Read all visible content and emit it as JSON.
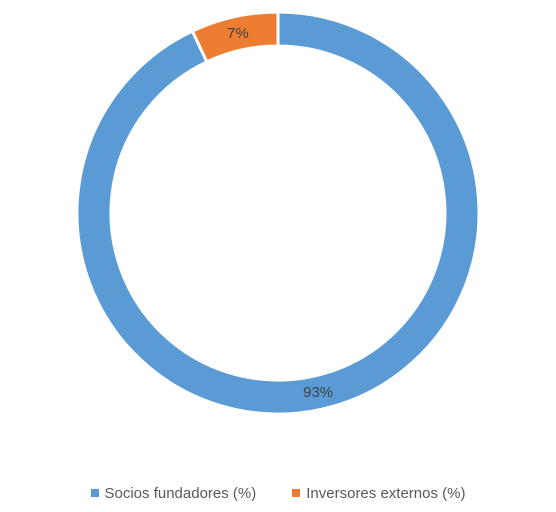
{
  "chart_data": {
    "type": "pie",
    "variant": "donut",
    "title": "",
    "categories": [
      "Socios fundadores (%)",
      "Inversores externos (%)"
    ],
    "values": [
      93,
      7
    ],
    "data_labels": [
      "93%",
      "7%"
    ],
    "colors": [
      "#5B9BD5",
      "#ED7D31"
    ],
    "legend_position": "bottom"
  }
}
